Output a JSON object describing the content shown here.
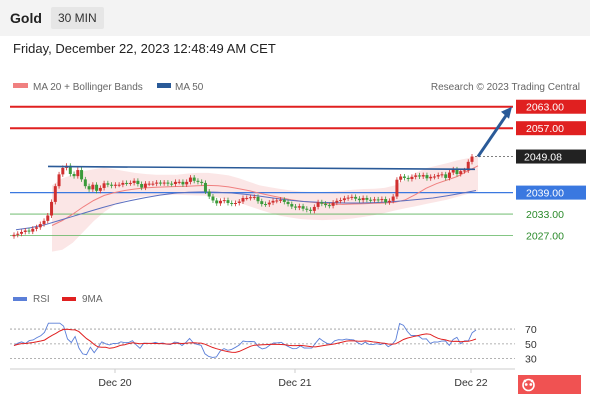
{
  "header": {
    "symbol": "Gold",
    "timeframe": "30 MIN"
  },
  "timestamp": "Friday, December 22, 2023 12:48:49 AM CET",
  "legend": {
    "ma20": "MA 20 + Bollinger Bands",
    "ma50": "MA 50",
    "copyright": "Research © 2023 Trading Central"
  },
  "rsi_legend": {
    "rsi": "RSI",
    "ma": "9MA"
  },
  "colors": {
    "resistance": "#e02020",
    "support": "#3a78e0",
    "target": "#5bb35b",
    "candle_up": "#d03030",
    "candle_down": "#3a9a3a",
    "ma20": "#f08080",
    "ma50": "#5a6fc0",
    "trend": "#2a5a98"
  },
  "chart_data": {
    "type": "candlestick",
    "ylim": [
      2021,
      2066
    ],
    "x_labels": [
      "Dec 20",
      "Dec 21",
      "Dec 22"
    ],
    "current_price": "2049.08",
    "levels": [
      {
        "label": "2063.00",
        "value": 2063.0,
        "kind": "resistance"
      },
      {
        "label": "2057.00",
        "value": 2057.0,
        "kind": "resistance"
      },
      {
        "label": "2039.00",
        "value": 2039.0,
        "kind": "support"
      },
      {
        "label": "2033.00",
        "value": 2033.0,
        "kind": "target"
      },
      {
        "label": "2027.00",
        "value": 2027.0,
        "kind": "target"
      }
    ],
    "close": [
      2027.2,
      2027.5,
      2028.0,
      2028.4,
      2028.1,
      2028.9,
      2029.3,
      2030.2,
      2031.1,
      2032.6,
      2036.4,
      2040.8,
      2044.1,
      2045.9,
      2046.5,
      2044.2,
      2043.6,
      2045.3,
      2042.7,
      2040.8,
      2039.9,
      2041.2,
      2039.5,
      2040.3,
      2041.6,
      2041.2,
      2040.9,
      2041.2,
      2041.2,
      2041.7,
      2041.6,
      2041.7,
      2042.3,
      2041.4,
      2040.4,
      2041.5,
      2041.5,
      2041.5,
      2041.8,
      2041.6,
      2041.8,
      2041.5,
      2041.4,
      2042.0,
      2042.0,
      2041.3,
      2042.0,
      2043.2,
      2042.3,
      2042.0,
      2041.7,
      2039.3,
      2037.9,
      2036.8,
      2036.0,
      2036.7,
      2036.9,
      2036.1,
      2035.9,
      2036.1,
      2036.5,
      2037.5,
      2037.5,
      2037.7,
      2037.8,
      2036.6,
      2035.8,
      2035.7,
      2036.2,
      2036.7,
      2036.8,
      2037.0,
      2036.4,
      2035.8,
      2035.1,
      2034.8,
      2035.2,
      2034.5,
      2034.2,
      2033.9,
      2035.0,
      2036.3,
      2035.9,
      2035.5,
      2035.3,
      2036.2,
      2036.7,
      2036.9,
      2037.4,
      2037.6,
      2037.8,
      2037.3,
      2036.9,
      2037.5,
      2037.0,
      2036.9,
      2037.1,
      2036.9,
      2037.2,
      2036.3,
      2036.7,
      2037.9,
      2042.6,
      2043.5,
      2043.1,
      2042.8,
      2043.4,
      2043.8,
      2043.5,
      2043.9,
      2043.0,
      2043.4,
      2043.5,
      2043.9,
      2044.1,
      2043.1,
      2044.6,
      2045.5,
      2044.2,
      2045.0,
      2045.2,
      2047.6,
      2049.08
    ],
    "bollinger_mid": [
      2029.8,
      2031.2,
      2033.0,
      2035.0,
      2036.8,
      2038.2,
      2039.0,
      2039.6,
      2040.0,
      2040.3,
      2040.5,
      2040.6,
      2040.7,
      2040.8,
      2040.9,
      2041.0,
      2040.9,
      2040.6,
      2040.1,
      2039.5,
      2038.8,
      2038.2,
      2037.6,
      2037.0,
      2036.6,
      2036.3,
      2036.0,
      2035.8,
      2035.7,
      2035.8,
      2035.9,
      2036.0,
      2036.1,
      2036.3,
      2037.0,
      2038.5,
      2040.2,
      2041.5,
      2042.5,
      2043.5,
      2045.0,
      2046.5
    ],
    "bollinger_upper": [
      2041,
      2043,
      2044,
      2045,
      2045.5,
      2046,
      2045.5,
      2045,
      2044.5,
      2044.2,
      2044,
      2044,
      2044,
      2044.3,
      2044.5,
      2044.5,
      2044.2,
      2043.8,
      2043,
      2042,
      2041,
      2040.5,
      2040,
      2039.6,
      2039.3,
      2039.2,
      2039.2,
      2039.3,
      2039.5,
      2039.8,
      2040,
      2040.1,
      2040.3,
      2041,
      2042.6,
      2044.5,
      2045.8,
      2046.5,
      2047.2,
      2048,
      2048.6,
      2049.2
    ],
    "bollinger_lower": [
      2022.5,
      2023,
      2025,
      2028,
      2031,
      2033.5,
      2035.5,
      2036.8,
      2037.5,
      2038,
      2038.2,
      2038.3,
      2038.4,
      2038.3,
      2038.2,
      2038.1,
      2037.6,
      2037,
      2036.2,
      2035.2,
      2034.2,
      2033.3,
      2032.5,
      2032,
      2031.6,
      2031.4,
      2031.3,
      2031.4,
      2031.5,
      2031.8,
      2032.2,
      2032.7,
      2033.3,
      2034,
      2034.6,
      2035.2,
      2035.8,
      2036.4,
      2037,
      2037.8,
      2038.6,
      2039.4
    ],
    "ma50": [
      2028.6,
      2029.2,
      2030.0,
      2031.2,
      2032.4,
      2033.6,
      2034.8,
      2035.9,
      2036.8,
      2037.6,
      2038.3,
      2038.8,
      2039.1,
      2039.2,
      2039.1,
      2038.9,
      2038.5,
      2038.0,
      2037.4,
      2036.9,
      2036.5,
      2036.3,
      2036.2,
      2036.1,
      2036.1,
      2036.2,
      2036.4,
      2036.7,
      2037.1,
      2037.5,
      2038.1,
      2038.8,
      2039.6
    ],
    "trendline": {
      "from": 2046.3,
      "to": 2045.5
    },
    "arrow": {
      "from": 2049.08,
      "to": 2063.0
    },
    "rsi": {
      "levels": [
        70,
        50,
        30
      ],
      "ylim": [
        20,
        85
      ]
    }
  }
}
